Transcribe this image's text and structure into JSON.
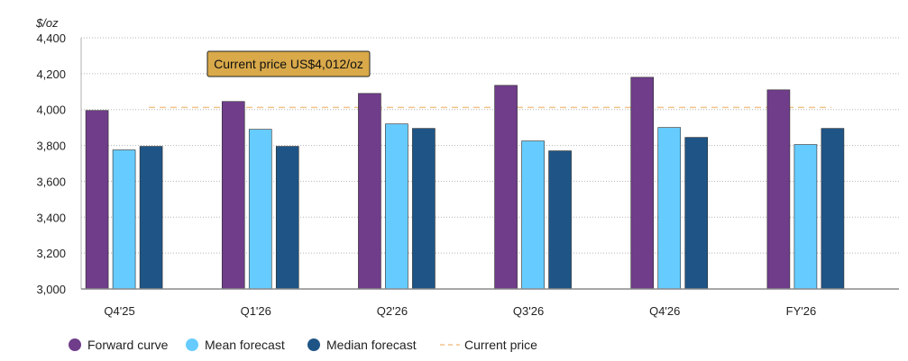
{
  "chart_data": {
    "type": "bar",
    "title": "",
    "xlabel": "",
    "ylabel": "$/oz",
    "ylim": [
      3000,
      4400
    ],
    "yticks": [
      3000,
      3200,
      3400,
      3600,
      3800,
      4000,
      4200,
      4400
    ],
    "ytick_labels": [
      "3,000",
      "3,200",
      "3,400",
      "3,600",
      "3,800",
      "4,000",
      "4,200",
      "4,400"
    ],
    "grid": true,
    "categories": [
      "Q4'25",
      "Q1'26",
      "Q2'26",
      "Q3'26",
      "Q4'26",
      "FY'26"
    ],
    "series": [
      {
        "name": "Forward curve",
        "color": "#6f3d8a",
        "values": [
          3995,
          4045,
          4090,
          4135,
          4180,
          4110
        ]
      },
      {
        "name": "Mean forecast",
        "color": "#66ccff",
        "values": [
          3775,
          3890,
          3920,
          3825,
          3900,
          3805
        ]
      },
      {
        "name": "Median forecast",
        "color": "#1f5586",
        "values": [
          3795,
          3795,
          3895,
          3770,
          3845,
          3895
        ]
      }
    ],
    "reference_line": {
      "name": "Current price",
      "value": 4012,
      "color": "#f2c48a"
    },
    "annotation": {
      "text": "Current price US$4,012/oz",
      "fill": "#d9a94a"
    },
    "legend_position": "bottom-left"
  }
}
